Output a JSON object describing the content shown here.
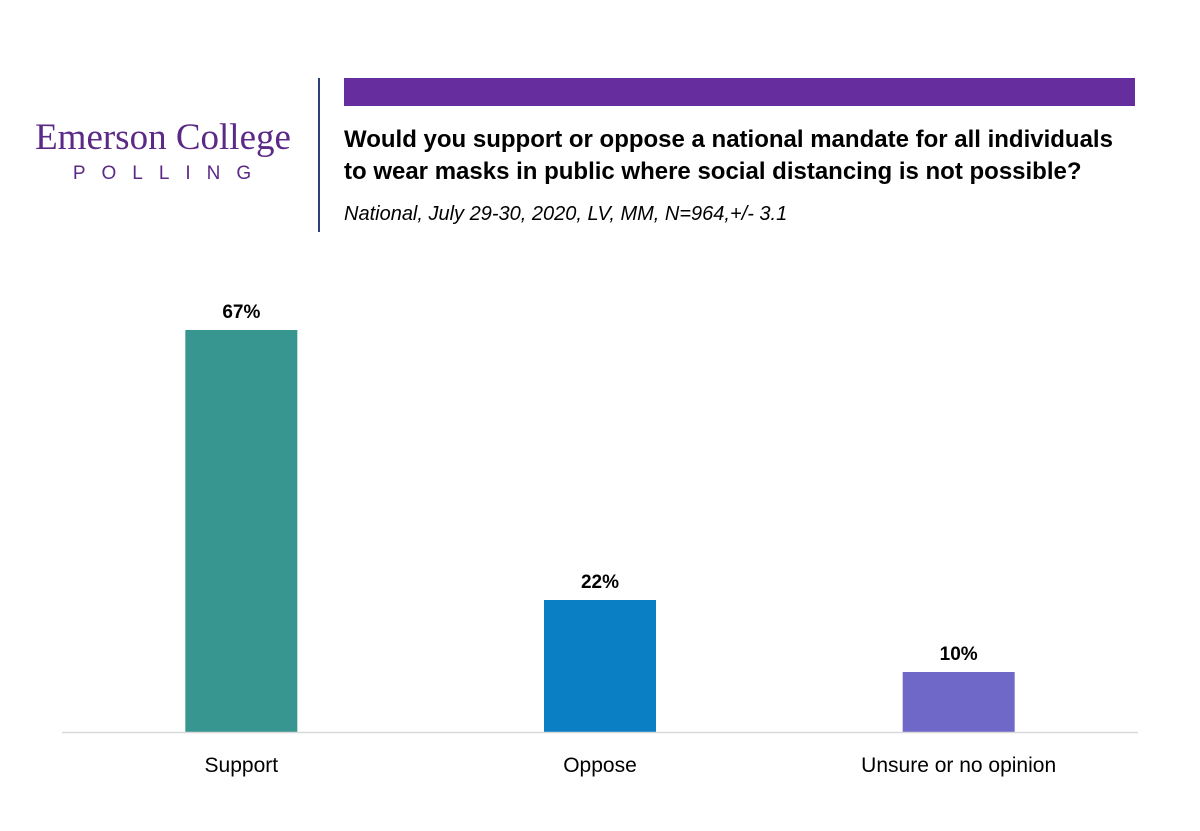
{
  "logo": {
    "name": "Emerson College",
    "sub": "POLLING",
    "color": "#5b2a86"
  },
  "header": {
    "accent_color": "#662d9e",
    "divider_color": "#2f3f7a",
    "question": "Would you support or oppose a national mandate for all individuals\nto wear masks in public where social distancing is not possible?",
    "subtitle": "National, July 29-30, 2020, LV, MM,  N=964,+/-  3.1"
  },
  "chart_data": {
    "type": "bar",
    "categories": [
      "Support",
      "Oppose",
      "Unsure or no opinion"
    ],
    "values": [
      67,
      22,
      10
    ],
    "data_labels": [
      "67%",
      "22%",
      "10%"
    ],
    "colors": [
      "#379690",
      "#0a7fc4",
      "#6f68c8"
    ],
    "title": "",
    "xlabel": "",
    "ylabel": "",
    "ylim": [
      0,
      67
    ],
    "grid": false,
    "legend": "none",
    "baseline_color": "#d9d9d9"
  }
}
